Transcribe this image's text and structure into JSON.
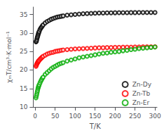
{
  "chart_data": {
    "type": "scatter",
    "xlabel": "T/K",
    "ylabel": "χₘT/cm³·K·mol⁻¹",
    "x": [
      2,
      3,
      4,
      5,
      6,
      7,
      8,
      9,
      10,
      12,
      14,
      16,
      18,
      20,
      25,
      30,
      35,
      40,
      45,
      50,
      55,
      60,
      65,
      70,
      80,
      90,
      100,
      110,
      120,
      130,
      140,
      150,
      160,
      170,
      180,
      190,
      200,
      210,
      220,
      230,
      240,
      250,
      260,
      270,
      280,
      290,
      300
    ],
    "series": [
      {
        "name": "Zn-Dy",
        "color": "black",
        "values": [
          27.6,
          27.8,
          28.2,
          28.7,
          29.0,
          29.4,
          29.8,
          30.1,
          30.4,
          30.9,
          31.3,
          31.6,
          31.9,
          32.2,
          32.7,
          33.1,
          33.4,
          33.7,
          33.9,
          34.1,
          34.3,
          34.4,
          34.5,
          34.6,
          34.8,
          34.9,
          35.0,
          35.1,
          35.2,
          35.25,
          35.3,
          35.35,
          35.38,
          35.4,
          35.42,
          35.44,
          35.46,
          35.47,
          35.48,
          35.49,
          35.5,
          35.5,
          35.51,
          35.51,
          35.52,
          35.52,
          35.53
        ]
      },
      {
        "name": "Zn-Tb",
        "color": "red",
        "values": [
          21.0,
          21.3,
          21.6,
          21.8,
          22.0,
          22.2,
          22.3,
          22.5,
          22.6,
          22.9,
          23.1,
          23.3,
          23.5,
          23.7,
          24.0,
          24.3,
          24.5,
          24.7,
          24.8,
          25.0,
          25.1,
          25.2,
          25.3,
          25.4,
          25.5,
          25.6,
          25.7,
          25.75,
          25.8,
          25.85,
          25.9,
          25.95,
          26.0,
          26.0,
          26.05,
          26.08,
          26.1,
          26.12,
          26.14,
          26.16,
          26.18,
          26.2,
          26.22,
          26.24,
          26.25,
          26.26,
          26.28
        ]
      },
      {
        "name": "Zn-Er",
        "color": "#00aa00",
        "values": [
          12.5,
          13.0,
          13.5,
          14.0,
          14.5,
          15.0,
          15.4,
          15.7,
          16.0,
          16.5,
          17.0,
          17.4,
          17.8,
          18.1,
          18.8,
          19.3,
          19.8,
          20.3,
          20.7,
          21.0,
          21.3,
          21.6,
          21.8,
          22.0,
          22.4,
          22.7,
          23.0,
          23.3,
          23.5,
          23.7,
          23.9,
          24.1,
          24.3,
          24.5,
          24.6,
          24.8,
          24.9,
          25.0,
          25.2,
          25.3,
          25.5,
          25.6,
          25.8,
          25.9,
          26.0,
          26.1,
          26.2
        ]
      }
    ],
    "xlim": [
      -5,
      305
    ],
    "xticks": [
      0,
      50,
      100,
      150,
      200,
      250,
      300
    ],
    "ylim": [
      10,
      37
    ],
    "yticks": [
      10,
      15,
      20,
      25,
      30,
      35
    ],
    "marker": "o",
    "grid": false,
    "legend": "lower right"
  }
}
